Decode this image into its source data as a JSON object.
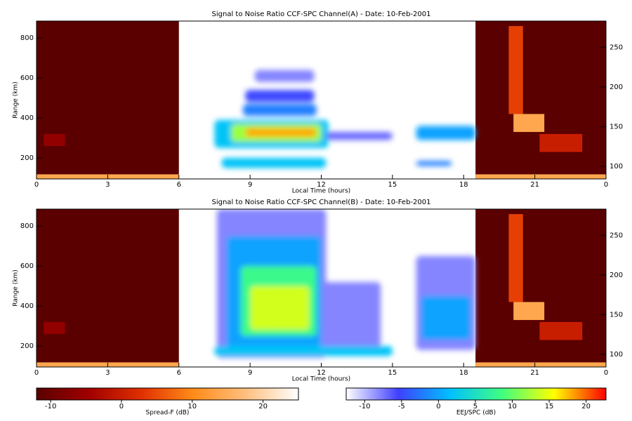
{
  "chart_data": [
    {
      "type": "heatmap",
      "title": "Signal to Noise Ratio CCF-SPC Channel(A) - Date: 10-Feb-2001",
      "xlabel": "Local Time (hours)",
      "ylabel": "Range (km)",
      "xlim": [
        0,
        24
      ],
      "xticks": [
        0,
        3,
        6,
        9,
        12,
        15,
        18,
        21,
        {
          "value": 24,
          "label": "0"
        }
      ],
      "ylim": [
        95,
        885
      ],
      "yticks": [
        200,
        400,
        600,
        800
      ],
      "y2lim": [
        84,
        283
      ],
      "y2ticks": [
        100,
        150,
        200,
        250
      ],
      "spread_f": [
        {
          "x0": 0,
          "x1": 6,
          "y0": 95,
          "y1": 885,
          "value": -12
        },
        {
          "x0": 0,
          "x1": 6,
          "y0": 95,
          "y1": 118,
          "value": 14
        },
        {
          "x0": 0.3,
          "x1": 1.2,
          "y0": 260,
          "y1": 320,
          "value": -6
        },
        {
          "x0": 18.5,
          "x1": 24,
          "y0": 95,
          "y1": 885,
          "value": -12
        },
        {
          "x0": 18.5,
          "x1": 24,
          "y0": 95,
          "y1": 118,
          "value": 14
        },
        {
          "x0": 19.9,
          "x1": 20.5,
          "y0": 420,
          "y1": 860,
          "value": 4
        },
        {
          "x0": 20.1,
          "x1": 21.4,
          "y0": 330,
          "y1": 420,
          "value": 14
        },
        {
          "x0": 21.2,
          "x1": 23,
          "y0": 230,
          "y1": 320,
          "value": 0
        }
      ],
      "eej": [
        {
          "x0": 7.5,
          "x1": 12.3,
          "y0": 250,
          "y1": 390,
          "value": 2
        },
        {
          "x0": 8.2,
          "x1": 12,
          "y0": 280,
          "y1": 370,
          "value": 12
        },
        {
          "x0": 8.8,
          "x1": 11.8,
          "y0": 305,
          "y1": 350,
          "value": 18
        },
        {
          "x0": 8.7,
          "x1": 11.8,
          "y0": 410,
          "y1": 470,
          "value": -2
        },
        {
          "x0": 8.8,
          "x1": 11.7,
          "y0": 480,
          "y1": 540,
          "value": -5
        },
        {
          "x0": 9.2,
          "x1": 11.7,
          "y0": 580,
          "y1": 640,
          "value": -8
        },
        {
          "x0": 7.8,
          "x1": 12.2,
          "y0": 150,
          "y1": 200,
          "value": 2
        },
        {
          "x0": 12.2,
          "x1": 15,
          "y0": 290,
          "y1": 330,
          "value": -7
        },
        {
          "x0": 16,
          "x1": 18.5,
          "y0": 290,
          "y1": 360,
          "value": 0
        },
        {
          "x0": 16,
          "x1": 17.5,
          "y0": 160,
          "y1": 185,
          "value": -2
        }
      ]
    },
    {
      "type": "heatmap",
      "title": "Signal to Noise Ratio CCF-SPC Channel(B) - Date: 10-Feb-2001",
      "xlabel": "Local Time (hours)",
      "ylabel": "Range (km)",
      "xlim": [
        0,
        24
      ],
      "xticks": [
        0,
        3,
        6,
        9,
        12,
        15,
        18,
        21,
        {
          "value": 24,
          "label": "0"
        }
      ],
      "ylim": [
        95,
        885
      ],
      "yticks": [
        200,
        400,
        600,
        800
      ],
      "y2lim": [
        84,
        283
      ],
      "y2ticks": [
        100,
        150,
        200,
        250
      ],
      "spread_f": [
        {
          "x0": 0,
          "x1": 6,
          "y0": 95,
          "y1": 885,
          "value": -12
        },
        {
          "x0": 0,
          "x1": 6,
          "y0": 95,
          "y1": 118,
          "value": 14
        },
        {
          "x0": 0.3,
          "x1": 1.2,
          "y0": 260,
          "y1": 320,
          "value": -6
        },
        {
          "x0": 18.5,
          "x1": 24,
          "y0": 95,
          "y1": 885,
          "value": -12
        },
        {
          "x0": 18.5,
          "x1": 24,
          "y0": 95,
          "y1": 118,
          "value": 14
        },
        {
          "x0": 19.9,
          "x1": 20.5,
          "y0": 420,
          "y1": 860,
          "value": 4
        },
        {
          "x0": 20.1,
          "x1": 21.4,
          "y0": 330,
          "y1": 420,
          "value": 14
        },
        {
          "x0": 21.2,
          "x1": 23,
          "y0": 230,
          "y1": 320,
          "value": 0
        }
      ],
      "eej": [
        {
          "x0": 7.6,
          "x1": 12.2,
          "y0": 140,
          "y1": 885,
          "value": -8
        },
        {
          "x0": 8,
          "x1": 12,
          "y0": 150,
          "y1": 750,
          "value": 0
        },
        {
          "x0": 8.6,
          "x1": 11.8,
          "y0": 250,
          "y1": 600,
          "value": 8
        },
        {
          "x0": 9,
          "x1": 11.5,
          "y0": 280,
          "y1": 500,
          "value": 14
        },
        {
          "x0": 12,
          "x1": 14.5,
          "y0": 180,
          "y1": 520,
          "value": -8
        },
        {
          "x0": 16,
          "x1": 18.5,
          "y0": 180,
          "y1": 650,
          "value": -8
        },
        {
          "x0": 16.2,
          "x1": 18.3,
          "y0": 230,
          "y1": 450,
          "value": 0
        },
        {
          "x0": 7.5,
          "x1": 15,
          "y0": 150,
          "y1": 200,
          "value": 2
        }
      ]
    }
  ],
  "colorbars": [
    {
      "label": "Spread-F (dB)",
      "lim": [
        -12,
        25
      ],
      "ticks": [
        -10,
        0,
        10,
        20
      ],
      "colors": [
        "#5a0000",
        "#a00000",
        "#e03000",
        "#ff8c1a",
        "#ffc080",
        "#ffffff"
      ]
    },
    {
      "label": "EEJ/SPC (dB)",
      "lim": [
        -12.5,
        22.7
      ],
      "ticks": [
        -10,
        -5,
        0,
        5,
        10,
        15,
        20
      ],
      "colors": [
        "#ffffff",
        "#4040ff",
        "#00c0ff",
        "#40ff80",
        "#ffff00",
        "#ff0000"
      ]
    }
  ]
}
